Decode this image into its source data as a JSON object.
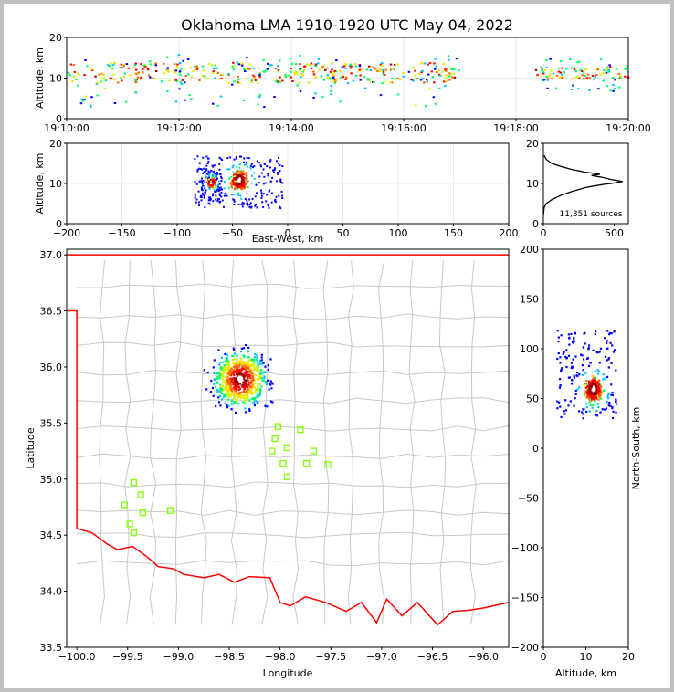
{
  "title": "Oklahoma LMA 1910-1920 UTC May 04, 2022",
  "colors": {
    "border": "#ff0000",
    "county": "#c8c8c8",
    "station": "#7fff00",
    "histogram": "#000000",
    "source_scale": [
      "#0000ff",
      "#00c0ff",
      "#00ff66",
      "#ccff00",
      "#ffdd00",
      "#ff6600",
      "#ff0000",
      "#990000",
      "#ffffff"
    ]
  },
  "source_count_label": "11,351 sources",
  "chart_data": [
    {
      "id": "time_height",
      "type": "scatter",
      "xlabel": "",
      "ylabel": "Altitude, km",
      "xlim": [
        "19:10:00",
        "19:20:00"
      ],
      "ylim": [
        0,
        20
      ],
      "xticks": [
        "19:10:00",
        "19:12:00",
        "19:14:00",
        "19:16:00",
        "19:18:00",
        "19:20:00"
      ],
      "yticks": [
        0,
        10,
        20
      ],
      "grid": true,
      "segments": [
        {
          "t_start": "19:10:00",
          "t_end": "19:17:00",
          "alt_min": 3,
          "alt_max": 16,
          "alt_core": [
            9,
            14
          ]
        },
        {
          "t_start": "19:18:20",
          "t_end": "19:20:00",
          "alt_min": 7,
          "alt_max": 15,
          "alt_core": [
            10,
            13
          ]
        }
      ]
    },
    {
      "id": "east_west_height",
      "type": "scatter",
      "xlabel": "East-West, km",
      "ylabel": "Altitude, km",
      "xlim": [
        -200,
        200
      ],
      "ylim": [
        0,
        20
      ],
      "xticks": [
        -200,
        -150,
        -100,
        -50,
        0,
        50,
        100,
        150,
        200
      ],
      "yticks": [
        0,
        10,
        20
      ],
      "grid": true,
      "clusters": [
        {
          "x_min": -85,
          "x_max": -5,
          "alt_min": 4,
          "alt_max": 17,
          "core_x": [
            -55,
            -35
          ],
          "core_alt": [
            8,
            14
          ]
        },
        {
          "x_min": -80,
          "x_max": -60,
          "alt_min": 6,
          "alt_max": 14,
          "core_x": [
            -75,
            -65
          ],
          "core_alt": [
            9,
            12
          ]
        }
      ]
    },
    {
      "id": "altitude_histogram",
      "type": "line",
      "xlabel": "",
      "ylabel": "",
      "xlim": [
        0,
        600
      ],
      "ylim": [
        0,
        20
      ],
      "xticks": [
        0,
        500
      ],
      "yticks": [
        0,
        10,
        20
      ],
      "x": [
        0,
        5,
        20,
        60,
        120,
        200,
        300,
        380,
        430,
        480,
        560,
        480,
        420,
        340,
        400,
        300,
        200,
        120,
        60,
        20,
        5
      ],
      "y": [
        2,
        4,
        5,
        6,
        7,
        8,
        9,
        9.5,
        9.8,
        10,
        10.5,
        11,
        11.5,
        12,
        12.3,
        12.8,
        13.5,
        14.3,
        15,
        16,
        17
      ]
    },
    {
      "id": "plan_view",
      "type": "scatter",
      "xlabel": "Longitude",
      "ylabel": "Latitude",
      "xlim": [
        -100.1,
        -95.75
      ],
      "ylim": [
        33.5,
        37.05
      ],
      "xticks": [
        -100.0,
        -99.5,
        -99.0,
        -98.5,
        -98.0,
        -97.5,
        -97.0,
        -96.5,
        -96.0
      ],
      "yticks": [
        33.5,
        34.0,
        34.5,
        35.0,
        35.5,
        36.0,
        36.5,
        37.0
      ],
      "xtick_labels": [
        "−100.0",
        "−99.5",
        "−99.0",
        "−98.5",
        "−98.0",
        "−97.5",
        "−97.0",
        "−96.5",
        "−96.0"
      ],
      "ytick_labels": [
        "33.5",
        "34.0",
        "34.5",
        "35.0",
        "35.5",
        "36.0",
        "36.5",
        "37.0"
      ],
      "storm": {
        "lon_range": [
          -98.85,
          -98.0
        ],
        "lat_range": [
          35.6,
          36.35
        ],
        "core": [
          -98.4,
          35.9
        ]
      },
      "stations": [
        {
          "lon": -98.02,
          "lat": 35.47
        },
        {
          "lon": -97.8,
          "lat": 35.44
        },
        {
          "lon": -98.05,
          "lat": 35.36
        },
        {
          "lon": -97.93,
          "lat": 35.28
        },
        {
          "lon": -98.08,
          "lat": 35.25
        },
        {
          "lon": -97.67,
          "lat": 35.25
        },
        {
          "lon": -97.97,
          "lat": 35.14
        },
        {
          "lon": -97.74,
          "lat": 35.14
        },
        {
          "lon": -97.53,
          "lat": 35.13
        },
        {
          "lon": -97.93,
          "lat": 35.02
        },
        {
          "lon": -99.44,
          "lat": 34.97
        },
        {
          "lon": -99.37,
          "lat": 34.86
        },
        {
          "lon": -99.53,
          "lat": 34.77
        },
        {
          "lon": -99.35,
          "lat": 34.7
        },
        {
          "lon": -99.08,
          "lat": 34.72
        },
        {
          "lon": -99.48,
          "lat": 34.6
        },
        {
          "lon": -99.44,
          "lat": 34.52
        }
      ]
    },
    {
      "id": "north_south_height",
      "type": "scatter",
      "xlabel": "Altitude, km",
      "ylabel": "North-South, km",
      "xlim": [
        0,
        20
      ],
      "ylim": [
        -200,
        200
      ],
      "xticks": [
        0,
        10,
        20
      ],
      "yticks": [
        -200,
        -150,
        -100,
        -50,
        0,
        50,
        100,
        150,
        200
      ],
      "yticks_labels": [
        "−200",
        "−150",
        "−100",
        "−50",
        "0",
        "50",
        "100",
        "150",
        "200"
      ],
      "cluster": {
        "alt_min": 3,
        "alt_max": 17,
        "ns_min": 30,
        "ns_max": 120,
        "core_alt": [
          9,
          14
        ],
        "core_ns": [
          45,
          75
        ]
      }
    }
  ]
}
